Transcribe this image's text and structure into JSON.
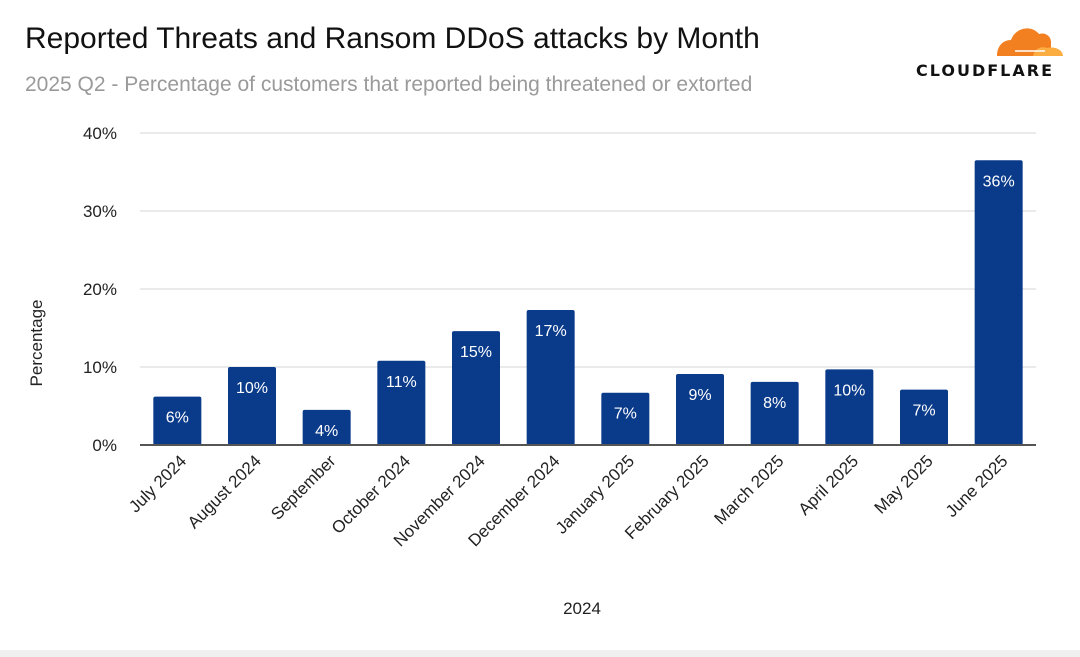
{
  "brand": {
    "logo_text": "CLOUDFLARE",
    "colors": {
      "orange": "#f38020",
      "light_orange": "#fbad41"
    }
  },
  "chart_data": {
    "type": "bar",
    "title": "Reported Threats and Ransom DDoS attacks by Month",
    "subtitle": "2025 Q2 - Percentage of customers that reported being threatened or extorted",
    "xlabel": "2024",
    "ylabel": "Percentage",
    "ylim": [
      0,
      40
    ],
    "yticks": [
      "0%",
      "10%",
      "20%",
      "30%",
      "40%"
    ],
    "grid": true,
    "bar_color": "#0a3a8a",
    "categories": [
      "July 2024",
      "August 2024",
      "September",
      "October 2024",
      "November 2024",
      "December 2024",
      "January 2025",
      "February 2025",
      "March 2025",
      "April 2025",
      "May 2025",
      "June 2025"
    ],
    "values": [
      6.2,
      10.0,
      4.5,
      10.8,
      14.6,
      17.3,
      6.7,
      9.1,
      8.1,
      9.7,
      7.1,
      36.5
    ],
    "data_labels": [
      "6%",
      "10%",
      "4%",
      "11%",
      "15%",
      "17%",
      "7%",
      "9%",
      "8%",
      "10%",
      "7%",
      "36%"
    ]
  }
}
